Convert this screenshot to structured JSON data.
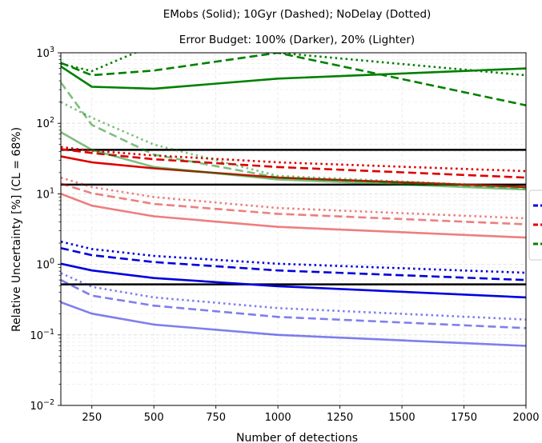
{
  "chart_data": {
    "type": "line",
    "title": "EMobs (Solid); 10Gyr (Dashed); NoDelay (Dotted)",
    "subtitle": "Error Budget: 100% (Darker), 20% (Lighter)",
    "xlabel": "Number of detections",
    "ylabel": "Relative Uncertainty [%] (CL = 68%)",
    "xlim": [
      125,
      2000
    ],
    "ylim": [
      0.01,
      1000
    ],
    "y_scale": "log",
    "grid": true,
    "legend": "right, partially cut off",
    "x_ticks": [
      250,
      500,
      750,
      1000,
      1250,
      1500,
      1750,
      2000
    ],
    "x_tick_labels": [
      "250",
      "500",
      "750",
      "1000",
      "1250",
      "1500",
      "1750",
      "2000"
    ],
    "y_ticks": [
      0.01,
      0.1,
      1,
      10,
      100,
      1000
    ],
    "y_tick_labels": [
      {
        "base": "10",
        "exp": "−2"
      },
      {
        "base": "10",
        "exp": "−1"
      },
      {
        "base": "10",
        "exp": "0"
      },
      {
        "base": "10",
        "exp": "1"
      },
      {
        "base": "10",
        "exp": "2"
      },
      {
        "base": "10",
        "exp": "3"
      }
    ],
    "x": [
      125,
      250,
      500,
      1000,
      2000
    ],
    "hlines": [
      42,
      13.5,
      0.52
    ],
    "series": [
      {
        "color": "#0000dd",
        "opacity": 1.0,
        "style": "solid",
        "values": [
          1.02,
          0.82,
          0.64,
          0.49,
          0.34
        ]
      },
      {
        "color": "#0000dd",
        "opacity": 1.0,
        "style": "dashed",
        "values": [
          1.7,
          1.35,
          1.08,
          0.82,
          0.6
        ]
      },
      {
        "color": "#0000dd",
        "opacity": 1.0,
        "style": "dotted",
        "values": [
          2.1,
          1.65,
          1.32,
          1.02,
          0.76
        ]
      },
      {
        "color": "#0000dd",
        "opacity": 0.5,
        "style": "solid",
        "values": [
          0.29,
          0.2,
          0.14,
          0.1,
          0.07
        ]
      },
      {
        "color": "#0000dd",
        "opacity": 0.5,
        "style": "dashed",
        "values": [
          0.6,
          0.36,
          0.26,
          0.18,
          0.125
        ]
      },
      {
        "color": "#0000dd",
        "opacity": 0.5,
        "style": "dotted",
        "values": [
          0.75,
          0.48,
          0.34,
          0.24,
          0.165
        ]
      },
      {
        "color": "#dd0000",
        "opacity": 1.0,
        "style": "solid",
        "values": [
          34,
          28,
          23,
          17,
          12.5
        ]
      },
      {
        "color": "#dd0000",
        "opacity": 1.0,
        "style": "dashed",
        "values": [
          43,
          38,
          31,
          24,
          17
        ]
      },
      {
        "color": "#dd0000",
        "opacity": 1.0,
        "style": "dotted",
        "values": [
          46,
          41,
          35,
          28,
          21
        ]
      },
      {
        "color": "#dd0000",
        "opacity": 0.5,
        "style": "solid",
        "values": [
          10,
          6.8,
          4.8,
          3.4,
          2.4
        ]
      },
      {
        "color": "#dd0000",
        "opacity": 0.5,
        "style": "dashed",
        "values": [
          14,
          10.2,
          7.2,
          5.2,
          3.7
        ]
      },
      {
        "color": "#dd0000",
        "opacity": 0.5,
        "style": "dotted",
        "values": [
          17,
          12.5,
          9,
          6.3,
          4.5
        ]
      },
      {
        "color": "#008000",
        "opacity": 1.0,
        "style": "solid",
        "values": [
          640,
          330,
          310,
          430,
          600
        ]
      },
      {
        "color": "#008000",
        "opacity": 1.0,
        "style": "dashed",
        "values": [
          720,
          480,
          560,
          1000,
          180
        ]
      },
      {
        "color": "#008000",
        "opacity": 1.0,
        "style": "dotted",
        "values": [
          700,
          550,
          1300,
          1000,
          480
        ]
      },
      {
        "color": "#008000",
        "opacity": 0.5,
        "style": "solid",
        "values": [
          75,
          42,
          24,
          16,
          11.5
        ]
      },
      {
        "color": "#008000",
        "opacity": 0.5,
        "style": "dashed",
        "values": [
          380,
          95,
          36,
          17,
          12
        ]
      },
      {
        "color": "#008000",
        "opacity": 0.5,
        "style": "dotted",
        "values": [
          200,
          120,
          50,
          18,
          12.5
        ]
      }
    ],
    "legend_entries": [
      {
        "color": "#0000dd"
      },
      {
        "color": "#dd0000"
      },
      {
        "color": "#008000"
      }
    ]
  }
}
